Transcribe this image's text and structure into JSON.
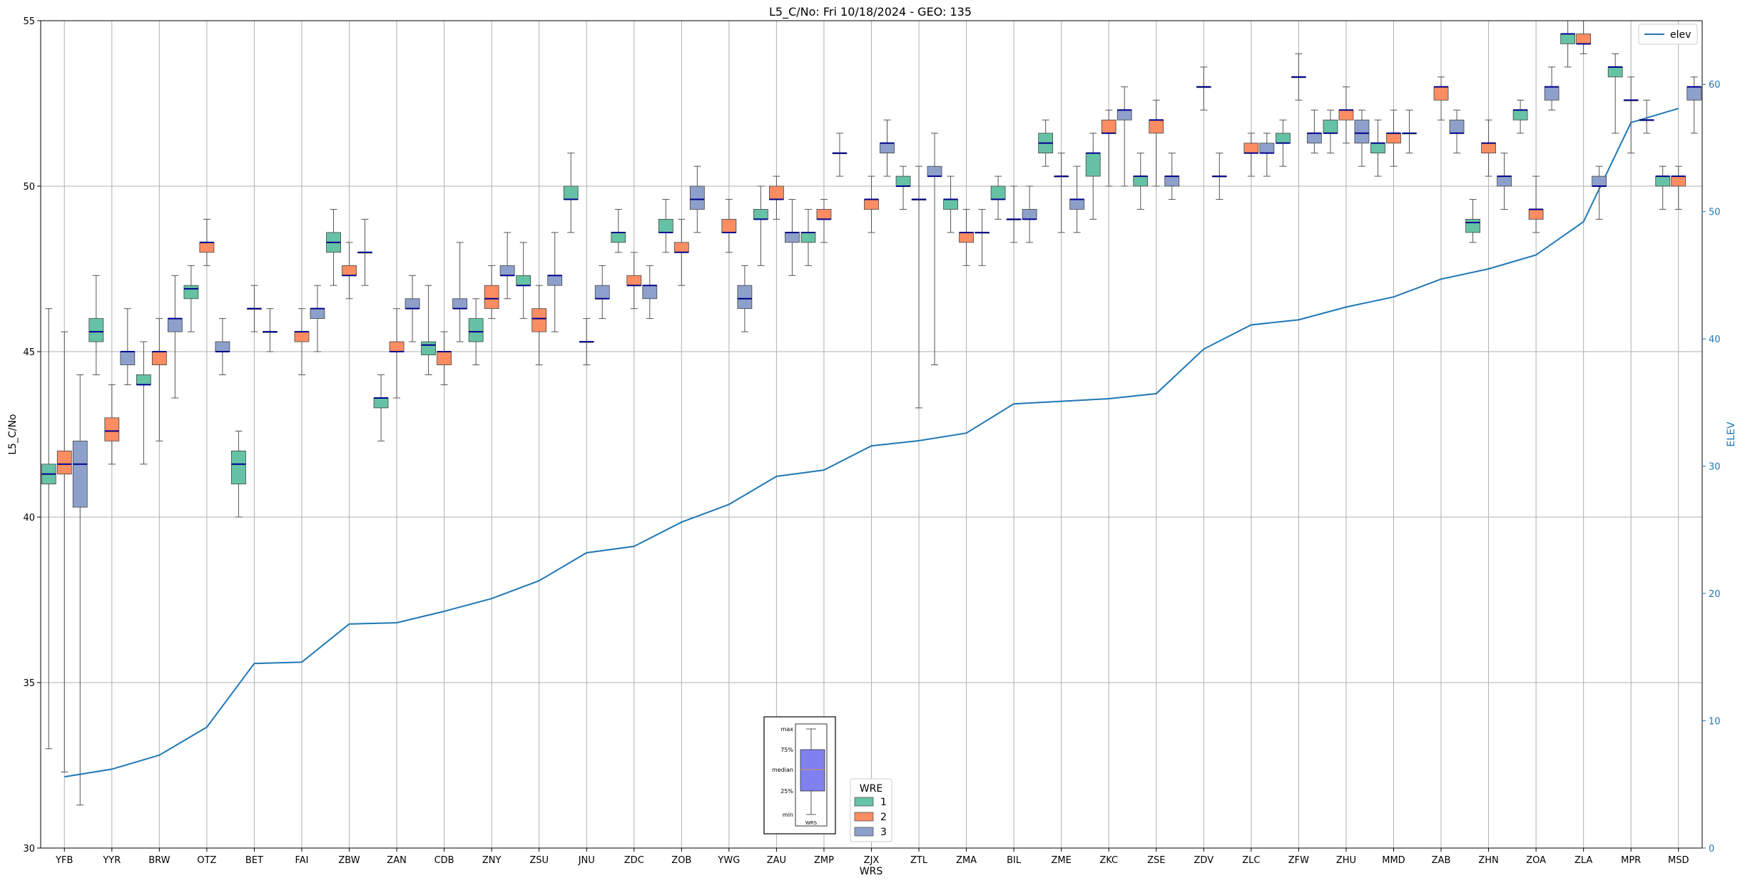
{
  "chart_data": {
    "type": "box",
    "title": "L5_C/No: Fri 10/18/2024 - GEO: 135",
    "xlabel": "WRS",
    "ylabel": "L5_C/No",
    "y2label": "ELEV",
    "ylim": [
      30,
      55
    ],
    "y2lim": [
      0,
      65
    ],
    "yticks": [
      30,
      35,
      40,
      45,
      50,
      55
    ],
    "y2ticks": [
      0,
      10,
      20,
      30,
      40,
      50,
      60
    ],
    "grid": true,
    "categories": [
      "YFB",
      "YYR",
      "BRW",
      "OTZ",
      "BET",
      "FAI",
      "ZBW",
      "ZAN",
      "CDB",
      "ZNY",
      "ZSU",
      "JNU",
      "ZDC",
      "ZOB",
      "YWG",
      "ZAU",
      "ZMP",
      "ZJX",
      "ZTL",
      "ZMA",
      "BIL",
      "ZME",
      "ZKC",
      "ZSE",
      "ZDV",
      "ZLC",
      "ZFW",
      "ZHU",
      "MMD",
      "ZAB",
      "ZHN",
      "ZOA",
      "ZLA",
      "MPR",
      "MSD"
    ],
    "legend": {
      "title": "WRE",
      "entries": [
        "1",
        "2",
        "3"
      ],
      "placement": "lower-center"
    },
    "colors": {
      "wre1": "#66c2a5",
      "wre2": "#fc8d62",
      "wre3": "#8da0cb",
      "median": "#00008b",
      "elev": "#1f77b4",
      "whisker": "#555555",
      "grid": "#b0b0b0"
    },
    "series": [
      {
        "name": "1",
        "boxes": [
          [
            33.0,
            41.0,
            41.3,
            41.6,
            46.3
          ],
          [
            44.3,
            45.3,
            45.6,
            46.0,
            47.3
          ],
          [
            41.6,
            44.0,
            44.0,
            44.3,
            45.3
          ],
          [
            45.6,
            46.6,
            46.9,
            47.0,
            47.6
          ],
          [
            40.0,
            41.0,
            41.6,
            42.0,
            42.6
          ],
          null,
          [
            47.0,
            48.0,
            48.3,
            48.6,
            49.3
          ],
          [
            42.3,
            43.3,
            43.6,
            43.6,
            44.3
          ],
          [
            44.3,
            44.9,
            45.2,
            45.3,
            47.0
          ],
          [
            44.6,
            45.3,
            45.6,
            46.0,
            46.6
          ],
          [
            46.0,
            47.0,
            47.0,
            47.3,
            48.3
          ],
          [
            48.6,
            49.6,
            49.6,
            50.0,
            51.0
          ],
          [
            48.0,
            48.3,
            48.6,
            48.6,
            49.3
          ],
          [
            48.0,
            48.6,
            48.6,
            49.0,
            49.6
          ],
          null,
          [
            47.6,
            49.0,
            49.0,
            49.3,
            50.0
          ],
          [
            47.6,
            48.3,
            48.6,
            48.6,
            49.3
          ],
          null,
          [
            49.3,
            50.0,
            50.0,
            50.3,
            50.6
          ],
          [
            48.6,
            49.3,
            49.6,
            49.6,
            50.3
          ],
          [
            49.0,
            49.6,
            49.6,
            50.0,
            50.3
          ],
          [
            50.6,
            51.0,
            51.3,
            51.6,
            52.0
          ],
          [
            49.0,
            50.3,
            51.0,
            51.0,
            51.6
          ],
          [
            49.3,
            50.0,
            50.3,
            50.3,
            51.0
          ],
          null,
          null,
          [
            50.6,
            51.3,
            51.3,
            51.6,
            52.0
          ],
          [
            51.0,
            51.6,
            51.6,
            52.0,
            52.3
          ],
          [
            50.3,
            51.0,
            51.3,
            51.3,
            52.0
          ],
          null,
          [
            48.3,
            48.6,
            48.9,
            49.0,
            49.6
          ],
          [
            51.6,
            52.0,
            52.3,
            52.3,
            52.6
          ],
          [
            53.6,
            54.3,
            54.6,
            54.6,
            55.0
          ],
          [
            51.6,
            53.3,
            53.6,
            53.6,
            54.0
          ],
          [
            49.3,
            50.0,
            50.3,
            50.3,
            50.6
          ]
        ]
      },
      {
        "name": "2",
        "boxes": [
          [
            32.3,
            41.3,
            41.6,
            42.0,
            45.6
          ],
          [
            41.6,
            42.3,
            42.6,
            43.0,
            44.0
          ],
          [
            42.3,
            44.6,
            45.0,
            45.0,
            46.0
          ],
          [
            47.6,
            48.0,
            48.3,
            48.3,
            49.0
          ],
          [
            45.6,
            46.3,
            46.3,
            46.3,
            47.0
          ],
          [
            44.3,
            45.3,
            45.6,
            45.6,
            46.3
          ],
          [
            46.6,
            47.3,
            47.3,
            47.6,
            48.3
          ],
          [
            43.6,
            45.0,
            45.0,
            45.3,
            46.3
          ],
          [
            44.0,
            44.6,
            45.0,
            45.0,
            45.6
          ],
          [
            46.0,
            46.3,
            46.6,
            47.0,
            47.6
          ],
          [
            44.6,
            45.6,
            46.0,
            46.3,
            47.0
          ],
          [
            44.6,
            45.3,
            45.3,
            45.3,
            46.0
          ],
          [
            46.3,
            47.0,
            47.0,
            47.3,
            48.0
          ],
          [
            47.0,
            48.0,
            48.0,
            48.3,
            49.0
          ],
          [
            48.0,
            48.6,
            48.6,
            49.0,
            49.6
          ],
          [
            49.0,
            49.6,
            49.6,
            50.0,
            50.3
          ],
          [
            48.3,
            49.0,
            49.0,
            49.3,
            49.6
          ],
          [
            48.6,
            49.3,
            49.6,
            49.6,
            50.3
          ],
          [
            43.3,
            49.6,
            49.6,
            49.6,
            50.6
          ],
          [
            47.6,
            48.3,
            48.6,
            48.6,
            49.3
          ],
          [
            48.3,
            49.0,
            49.0,
            49.0,
            50.0
          ],
          [
            48.6,
            50.3,
            50.3,
            50.3,
            51.0
          ],
          [
            50.0,
            51.6,
            51.6,
            52.0,
            52.3
          ],
          [
            50.0,
            51.6,
            52.0,
            52.0,
            52.6
          ],
          [
            52.3,
            53.0,
            53.0,
            53.0,
            53.6
          ],
          [
            50.3,
            51.0,
            51.0,
            51.3,
            51.6
          ],
          [
            52.6,
            53.3,
            53.3,
            53.3,
            54.0
          ],
          [
            51.3,
            52.0,
            52.3,
            52.3,
            53.0
          ],
          [
            50.6,
            51.3,
            51.6,
            51.6,
            52.3
          ],
          [
            52.0,
            52.6,
            53.0,
            53.0,
            53.3
          ],
          [
            50.3,
            51.0,
            51.3,
            51.3,
            52.0
          ],
          [
            48.6,
            49.0,
            49.3,
            49.3,
            50.3
          ],
          [
            54.0,
            54.3,
            54.3,
            54.6,
            55.0
          ],
          [
            51.0,
            52.6,
            52.6,
            52.6,
            53.3
          ],
          [
            49.3,
            50.0,
            50.3,
            50.3,
            50.6
          ]
        ]
      },
      {
        "name": "3",
        "boxes": [
          [
            31.3,
            40.3,
            41.6,
            42.3,
            44.3
          ],
          [
            44.0,
            44.6,
            45.0,
            45.0,
            46.3
          ],
          [
            43.6,
            45.6,
            46.0,
            46.0,
            47.3
          ],
          [
            44.3,
            45.0,
            45.0,
            45.3,
            46.0
          ],
          [
            45.0,
            45.6,
            45.6,
            45.6,
            46.3
          ],
          [
            45.0,
            46.0,
            46.3,
            46.3,
            47.0
          ],
          [
            47.0,
            48.0,
            48.0,
            48.0,
            49.0
          ],
          [
            45.3,
            46.3,
            46.3,
            46.6,
            47.3
          ],
          [
            45.3,
            46.3,
            46.3,
            46.6,
            48.3
          ],
          [
            46.6,
            47.3,
            47.3,
            47.6,
            48.6
          ],
          [
            45.6,
            47.0,
            47.3,
            47.3,
            48.6
          ],
          [
            46.0,
            46.6,
            46.6,
            47.0,
            47.6
          ],
          [
            46.0,
            46.6,
            47.0,
            47.0,
            47.6
          ],
          [
            48.6,
            49.3,
            49.6,
            50.0,
            50.6
          ],
          [
            45.6,
            46.3,
            46.6,
            47.0,
            47.6
          ],
          [
            47.3,
            48.3,
            48.6,
            48.6,
            49.6
          ],
          [
            50.3,
            51.0,
            51.0,
            51.0,
            51.6
          ],
          [
            50.3,
            51.0,
            51.3,
            51.3,
            52.0
          ],
          [
            44.6,
            50.3,
            50.3,
            50.6,
            51.6
          ],
          [
            47.6,
            48.6,
            48.6,
            48.6,
            49.3
          ],
          [
            48.3,
            49.0,
            49.0,
            49.3,
            50.0
          ],
          [
            48.6,
            49.3,
            49.6,
            49.6,
            50.6
          ],
          [
            50.0,
            52.0,
            52.3,
            52.3,
            53.0
          ],
          [
            49.6,
            50.0,
            50.3,
            50.3,
            51.0
          ],
          [
            49.6,
            50.3,
            50.3,
            50.3,
            51.0
          ],
          [
            50.3,
            51.0,
            51.0,
            51.3,
            51.6
          ],
          [
            51.0,
            51.3,
            51.6,
            51.6,
            52.3
          ],
          [
            50.6,
            51.3,
            51.6,
            52.0,
            52.3
          ],
          [
            51.0,
            51.6,
            51.6,
            51.6,
            52.3
          ],
          [
            51.0,
            51.6,
            51.6,
            52.0,
            52.3
          ],
          [
            49.3,
            50.0,
            50.3,
            50.3,
            51.0
          ],
          [
            52.3,
            52.6,
            53.0,
            53.0,
            53.6
          ],
          [
            49.0,
            50.0,
            50.0,
            50.3,
            50.6
          ],
          [
            51.6,
            52.0,
            52.0,
            52.0,
            52.6
          ],
          [
            51.6,
            52.6,
            53.0,
            53.0,
            53.3
          ]
        ]
      }
    ],
    "elev": {
      "name": "elev",
      "values": [
        5.6,
        6.2,
        7.3,
        9.5,
        14.5,
        14.6,
        17.6,
        17.7,
        18.6,
        19.6,
        21.0,
        23.2,
        23.7,
        25.6,
        27.0,
        29.2,
        29.7,
        31.6,
        32.0,
        32.6,
        34.9,
        35.1,
        35.3,
        35.7,
        39.2,
        41.1,
        41.5,
        42.5,
        43.3,
        44.7,
        45.5,
        46.6,
        49.2,
        57.0,
        58.1
      ]
    },
    "inset": {
      "labels": [
        "max",
        "75%",
        "median",
        "25%",
        "min"
      ],
      "xlabel": "WRS"
    }
  }
}
